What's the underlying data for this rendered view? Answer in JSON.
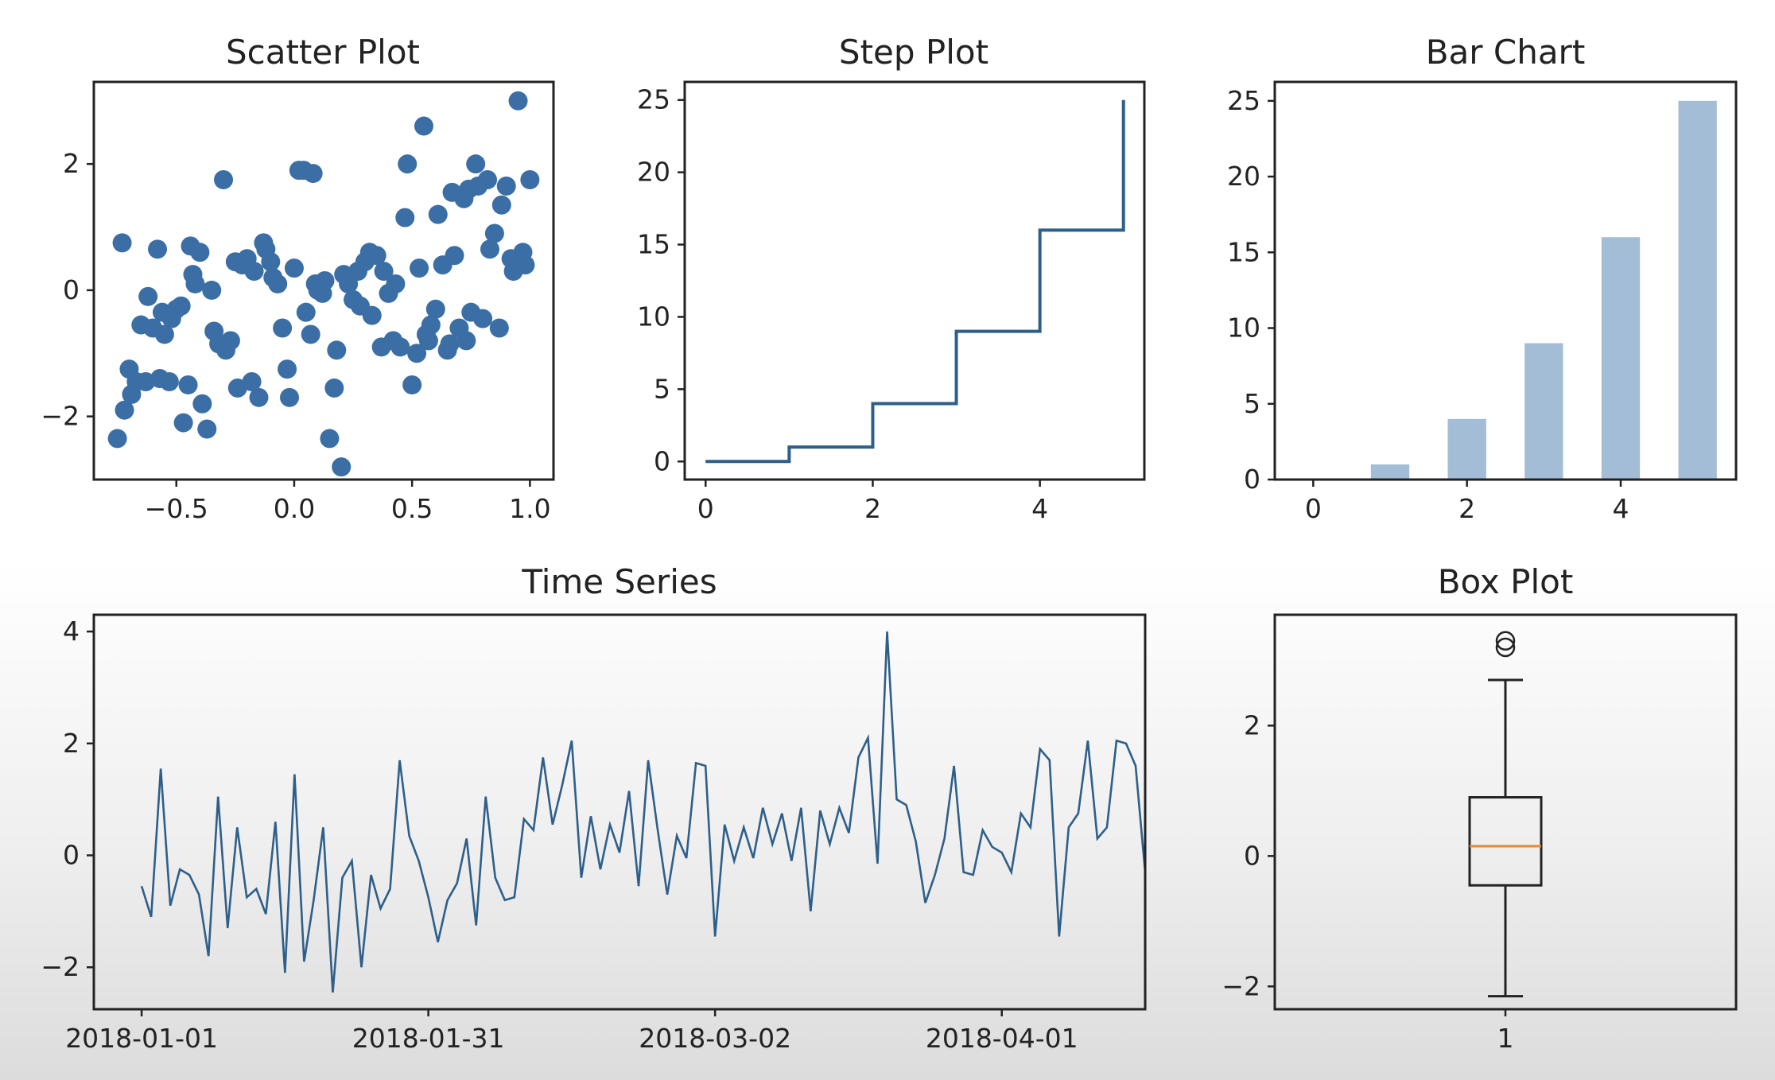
{
  "chart_data": [
    {
      "type": "scatter",
      "title": "Scatter Plot",
      "xlim": [
        -0.85,
        1.1
      ],
      "ylim": [
        -3.0,
        3.3
      ],
      "xticks": [
        -0.5,
        0.0,
        0.5,
        1.0
      ],
      "xtick_labels": [
        "−0.5",
        "0.0",
        "0.5",
        "1.0"
      ],
      "yticks": [
        -2,
        0,
        2
      ],
      "ytick_labels": [
        "−2",
        "0",
        "2"
      ],
      "color": "#3a6ea5",
      "points": [
        [
          -0.75,
          -2.35
        ],
        [
          -0.73,
          0.75
        ],
        [
          -0.72,
          -1.9
        ],
        [
          -0.7,
          -1.25
        ],
        [
          -0.69,
          -1.65
        ],
        [
          -0.67,
          -1.45
        ],
        [
          -0.65,
          -0.55
        ],
        [
          -0.63,
          -1.45
        ],
        [
          -0.62,
          -0.1
        ],
        [
          -0.6,
          -0.6
        ],
        [
          -0.58,
          0.65
        ],
        [
          -0.57,
          -1.4
        ],
        [
          -0.55,
          -0.7
        ],
        [
          -0.53,
          -1.45
        ],
        [
          -0.52,
          -0.45
        ],
        [
          -0.5,
          -0.3
        ],
        [
          -0.48,
          -0.25
        ],
        [
          -0.47,
          -2.1
        ],
        [
          -0.45,
          -1.5
        ],
        [
          -0.43,
          0.25
        ],
        [
          -0.42,
          0.1
        ],
        [
          -0.4,
          0.6
        ],
        [
          -0.39,
          -1.8
        ],
        [
          -0.37,
          -2.2
        ],
        [
          -0.35,
          0.0
        ],
        [
          -0.34,
          -0.65
        ],
        [
          -0.32,
          -0.85
        ],
        [
          -0.3,
          1.75
        ],
        [
          -0.29,
          -0.95
        ],
        [
          -0.27,
          -0.8
        ],
        [
          -0.25,
          0.45
        ],
        [
          -0.24,
          -1.55
        ],
        [
          -0.22,
          0.4
        ],
        [
          -0.2,
          0.5
        ],
        [
          -0.18,
          -1.45
        ],
        [
          -0.17,
          0.3
        ],
        [
          -0.15,
          -1.7
        ],
        [
          -0.13,
          0.75
        ],
        [
          -0.12,
          0.65
        ],
        [
          -0.1,
          0.45
        ],
        [
          -0.09,
          0.2
        ],
        [
          -0.07,
          0.1
        ],
        [
          -0.05,
          -0.6
        ],
        [
          -0.03,
          -1.25
        ],
        [
          -0.02,
          -1.7
        ],
        [
          0.0,
          0.35
        ],
        [
          0.02,
          1.9
        ],
        [
          0.04,
          1.9
        ],
        [
          0.05,
          -0.35
        ],
        [
          0.07,
          -0.7
        ],
        [
          0.09,
          0.1
        ],
        [
          0.1,
          0.0
        ],
        [
          0.12,
          -0.05
        ],
        [
          0.13,
          0.15
        ],
        [
          0.15,
          -2.35
        ],
        [
          0.17,
          -1.55
        ],
        [
          0.18,
          -0.95
        ],
        [
          0.2,
          -2.8
        ],
        [
          0.21,
          0.25
        ],
        [
          0.23,
          0.1
        ],
        [
          0.25,
          -0.15
        ],
        [
          0.27,
          0.3
        ],
        [
          0.28,
          -0.25
        ],
        [
          0.3,
          0.45
        ],
        [
          0.32,
          0.6
        ],
        [
          0.33,
          -0.4
        ],
        [
          0.35,
          0.55
        ],
        [
          0.37,
          -0.9
        ],
        [
          0.38,
          0.3
        ],
        [
          0.4,
          -0.05
        ],
        [
          0.42,
          -0.8
        ],
        [
          0.43,
          0.1
        ],
        [
          0.45,
          -0.9
        ],
        [
          0.47,
          1.15
        ],
        [
          0.48,
          2.0
        ],
        [
          0.5,
          -1.5
        ],
        [
          0.52,
          -1.0
        ],
        [
          0.53,
          0.35
        ],
        [
          0.55,
          2.6
        ],
        [
          0.57,
          -0.8
        ],
        [
          0.58,
          -0.55
        ],
        [
          0.6,
          -0.3
        ],
        [
          0.61,
          1.2
        ],
        [
          0.63,
          0.4
        ],
        [
          0.65,
          -0.95
        ],
        [
          0.67,
          1.55
        ],
        [
          0.68,
          0.55
        ],
        [
          0.7,
          -0.6
        ],
        [
          0.72,
          1.45
        ],
        [
          0.73,
          -0.8
        ],
        [
          0.75,
          -0.35
        ],
        [
          0.77,
          2.0
        ],
        [
          0.78,
          1.65
        ],
        [
          0.8,
          -0.45
        ],
        [
          0.82,
          1.75
        ],
        [
          0.83,
          0.65
        ],
        [
          0.85,
          0.9
        ],
        [
          0.87,
          -0.6
        ],
        [
          0.88,
          1.35
        ],
        [
          0.9,
          1.65
        ],
        [
          0.92,
          0.5
        ],
        [
          0.93,
          0.3
        ],
        [
          0.95,
          3.0
        ],
        [
          0.97,
          0.6
        ],
        [
          0.98,
          0.4
        ],
        [
          1.0,
          1.75
        ],
        [
          -0.44,
          0.7
        ],
        [
          0.08,
          1.85
        ],
        [
          0.74,
          1.6
        ],
        [
          0.66,
          -0.85
        ],
        [
          0.56,
          -0.7
        ],
        [
          -0.56,
          -0.35
        ]
      ]
    },
    {
      "type": "line",
      "subtype": "step",
      "title": "Step Plot",
      "xlim": [
        -0.25,
        5.25
      ],
      "ylim": [
        -1.25,
        26.25
      ],
      "xticks": [
        0,
        2,
        4
      ],
      "xtick_labels": [
        "0",
        "2",
        "4"
      ],
      "yticks": [
        0,
        5,
        10,
        15,
        20,
        25
      ],
      "ytick_labels": [
        "0",
        "5",
        "10",
        "15",
        "20",
        "25"
      ],
      "x": [
        0,
        1,
        2,
        3,
        4,
        5
      ],
      "y": [
        0,
        1,
        4,
        9,
        16,
        25
      ],
      "color": "#2d5f8a"
    },
    {
      "type": "bar",
      "title": "Bar Chart",
      "xlim": [
        -0.5,
        5.5
      ],
      "ylim": [
        0,
        26.25
      ],
      "xticks": [
        0,
        2,
        4
      ],
      "xtick_labels": [
        "0",
        "2",
        "4"
      ],
      "yticks": [
        0,
        5,
        10,
        15,
        20,
        25
      ],
      "ytick_labels": [
        "0",
        "5",
        "10",
        "15",
        "20",
        "25"
      ],
      "categories": [
        0,
        1,
        2,
        3,
        4,
        5
      ],
      "values": [
        0,
        1,
        4,
        9,
        16,
        25
      ],
      "color": "#a3bdd6"
    },
    {
      "type": "line",
      "title": "Time Series",
      "start_date": "2018-01-01",
      "xlim": [
        -5,
        105
      ],
      "ylim": [
        -2.75,
        4.3
      ],
      "xtick_labels": [
        "2018-01-01",
        "2018-01-31",
        "2018-03-02",
        "2018-04-01"
      ],
      "xticks_days": [
        0,
        30,
        60,
        90
      ],
      "yticks": [
        -2,
        0,
        2,
        4
      ],
      "ytick_labels": [
        "−2",
        "0",
        "2",
        "4"
      ],
      "color": "#2d5f8a",
      "values": [
        -0.55,
        -1.1,
        1.55,
        -0.9,
        -0.25,
        -0.35,
        -0.7,
        -1.8,
        1.05,
        -1.3,
        0.5,
        -0.75,
        -0.6,
        -1.05,
        0.6,
        -2.1,
        1.45,
        -1.9,
        -0.8,
        0.5,
        -2.45,
        -0.4,
        -0.1,
        -2.0,
        -0.35,
        -0.95,
        -0.6,
        1.7,
        0.35,
        -0.1,
        -0.75,
        -1.55,
        -0.8,
        -0.5,
        0.3,
        -1.25,
        1.05,
        -0.4,
        -0.8,
        -0.75,
        0.65,
        0.45,
        1.75,
        0.55,
        1.25,
        2.05,
        -0.4,
        0.7,
        -0.25,
        0.55,
        0.05,
        1.15,
        -0.55,
        1.7,
        0.45,
        -0.7,
        0.35,
        -0.05,
        1.65,
        1.6,
        -1.45,
        0.55,
        -0.1,
        0.5,
        -0.05,
        0.85,
        0.2,
        0.75,
        -0.1,
        0.85,
        -1.0,
        0.8,
        0.2,
        0.85,
        0.4,
        1.75,
        2.1,
        -0.15,
        4.0,
        1.0,
        0.9,
        0.25,
        -0.85,
        -0.35,
        0.3,
        1.6,
        -0.3,
        -0.35,
        0.45,
        0.15,
        0.05,
        -0.3,
        0.75,
        0.5,
        1.9,
        1.7,
        -1.45,
        0.5,
        0.75,
        2.05,
        0.3,
        0.5,
        2.05,
        2.0,
        1.6,
        -0.3
      ]
    },
    {
      "type": "box",
      "title": "Box Plot",
      "xlim": [
        0.5,
        1.5
      ],
      "ylim": [
        -2.35,
        3.7
      ],
      "xticks": [
        1
      ],
      "xtick_labels": [
        "1"
      ],
      "yticks": [
        -2,
        0,
        2
      ],
      "ytick_labels": [
        "−2",
        "0",
        "2"
      ],
      "stats": {
        "whislo": -2.15,
        "q1": -0.45,
        "med": 0.15,
        "q3": 0.9,
        "whishi": 2.7,
        "fliers": [
          3.2,
          3.3
        ]
      },
      "color": "#222222",
      "median_color": "#e08a3c"
    }
  ]
}
